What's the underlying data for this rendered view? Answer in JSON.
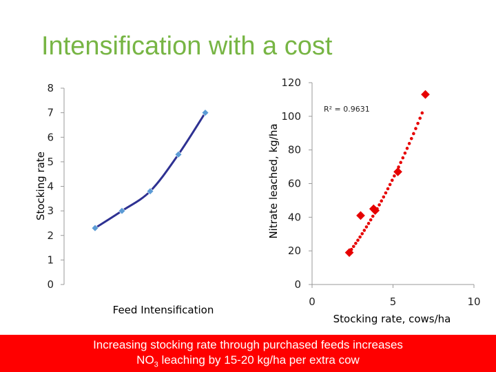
{
  "title": "Intensification with a cost",
  "banner": {
    "line1": "Increasing stocking rate through purchased feeds increases",
    "line2_pre": "NO",
    "line2_sub": "3",
    "line2_post": " leaching by 15-20 kg/ha per extra cow"
  },
  "colors": {
    "title": "#77b544",
    "banner": "#ff0000",
    "curve": "#2e3192",
    "marker": "#5b9bd5",
    "red": "#e60000"
  },
  "chart_data": [
    {
      "type": "line",
      "ylabel": "Stocking rate",
      "xlabel": "Feed Intensification",
      "ylim": [
        0,
        8
      ],
      "yticks": [
        "0",
        "1",
        "2",
        "3",
        "4",
        "5",
        "6",
        "7",
        "8"
      ],
      "series": [
        {
          "values": [
            2.3,
            3.0,
            3.8,
            5.3,
            7.0
          ]
        }
      ],
      "grid": false
    },
    {
      "type": "scatter",
      "xlabel": "Stocking rate, cows/ha",
      "ylabel": "Nitrate leached, kg/ha",
      "xlim": [
        0,
        10
      ],
      "ylim": [
        0,
        120
      ],
      "xticks": [
        "0",
        "5",
        "10"
      ],
      "yticks": [
        "0",
        "20",
        "40",
        "60",
        "80",
        "100",
        "120"
      ],
      "annotation": "R² = 0.9631",
      "points": [
        {
          "x": 2.3,
          "y": 19
        },
        {
          "x": 3.0,
          "y": 41
        },
        {
          "x": 3.8,
          "y": 45
        },
        {
          "x": 3.9,
          "y": 44
        },
        {
          "x": 5.3,
          "y": 67
        },
        {
          "x": 7.0,
          "y": 113
        }
      ],
      "trendline": {
        "type": "polynomial",
        "style": "dotted",
        "x_range": [
          2.3,
          6.8
        ]
      },
      "grid": false
    }
  ]
}
